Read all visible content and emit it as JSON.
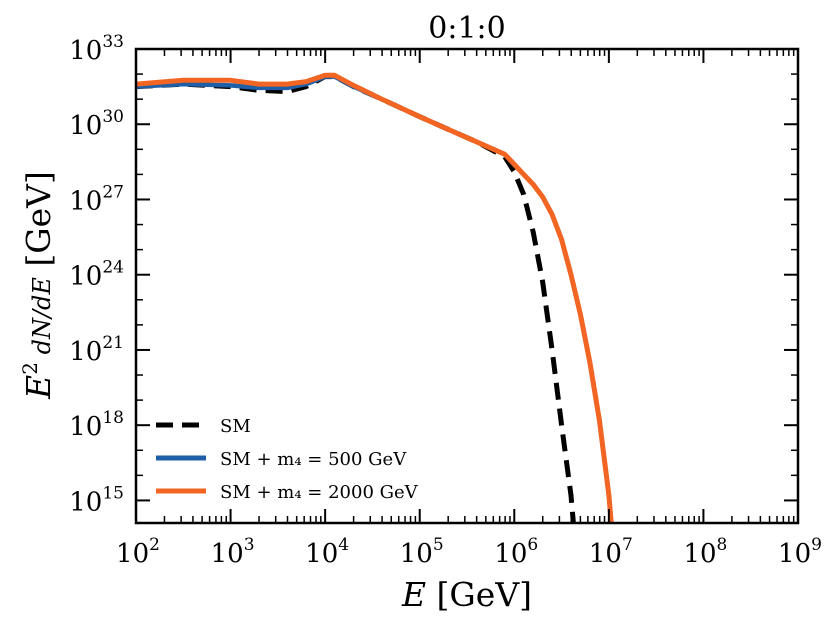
{
  "chart_data": {
    "type": "line",
    "title": "0:1:0",
    "xlabel": "E [GeV]",
    "ylabel": "E^2 dN/dE [GeV]",
    "x_scale": "log",
    "y_scale": "log",
    "xlim_log10": [
      2,
      9
    ],
    "ylim_log10": [
      14.1,
      33
    ],
    "x_tick_labels": [
      "10^2",
      "10^3",
      "10^4",
      "10^5",
      "10^6",
      "10^7",
      "10^8",
      "10^9"
    ],
    "y_tick_labels": [
      "10^15",
      "10^18",
      "10^21",
      "10^24",
      "10^27",
      "10^30",
      "10^33"
    ],
    "legend_position": "lower-left",
    "series": [
      {
        "name": "SM",
        "legend_label": "SM",
        "color": "#000000",
        "style": "dashed",
        "log10_x": [
          2.0,
          2.5,
          3.0,
          3.3,
          3.6,
          3.8,
          4.0,
          4.1,
          4.3,
          4.6,
          5.0,
          5.3,
          5.6,
          5.9,
          6.0,
          6.1,
          6.2,
          6.3,
          6.4,
          6.5,
          6.6,
          6.65
        ],
        "log10_y": [
          31.5,
          31.6,
          31.5,
          31.35,
          31.3,
          31.5,
          31.9,
          31.9,
          31.5,
          31.0,
          30.3,
          29.8,
          29.3,
          28.7,
          28.1,
          27.2,
          25.7,
          23.7,
          21.0,
          18.0,
          15.2,
          13.0
        ]
      },
      {
        "name": "SM + m4 = 500 GeV",
        "legend_label": "SM + m₄ = 500 GeV",
        "color": "#1f5fa8",
        "style": "solid",
        "log10_x": [
          2.0,
          2.5,
          3.0,
          3.3,
          3.6,
          3.8,
          4.0,
          4.1,
          4.3,
          4.6,
          5.0,
          5.3,
          5.6,
          5.9,
          6.0,
          6.1,
          6.2,
          6.3,
          6.4,
          6.5,
          6.6,
          6.7,
          6.8,
          6.9,
          7.0,
          7.05
        ],
        "log10_y": [
          31.5,
          31.6,
          31.55,
          31.45,
          31.45,
          31.6,
          31.9,
          31.9,
          31.5,
          31.0,
          30.3,
          29.8,
          29.3,
          28.8,
          28.4,
          28.0,
          27.6,
          27.1,
          26.4,
          25.4,
          24.0,
          22.4,
          20.5,
          18.2,
          15.2,
          13.0
        ]
      },
      {
        "name": "SM + m4 = 2000 GeV",
        "legend_label": "SM + m₄ = 2000 GeV",
        "color": "#f26522",
        "style": "solid",
        "log10_x": [
          2.0,
          2.5,
          3.0,
          3.3,
          3.6,
          3.8,
          4.0,
          4.1,
          4.3,
          4.6,
          5.0,
          5.3,
          5.6,
          5.9,
          6.0,
          6.1,
          6.2,
          6.3,
          6.4,
          6.5,
          6.6,
          6.7,
          6.8,
          6.9,
          7.0,
          7.05
        ],
        "log10_y": [
          31.6,
          31.75,
          31.75,
          31.6,
          31.6,
          31.7,
          31.95,
          31.95,
          31.55,
          31.0,
          30.3,
          29.8,
          29.3,
          28.8,
          28.4,
          28.0,
          27.6,
          27.1,
          26.4,
          25.4,
          24.0,
          22.4,
          20.5,
          18.2,
          15.2,
          13.0
        ]
      }
    ]
  }
}
